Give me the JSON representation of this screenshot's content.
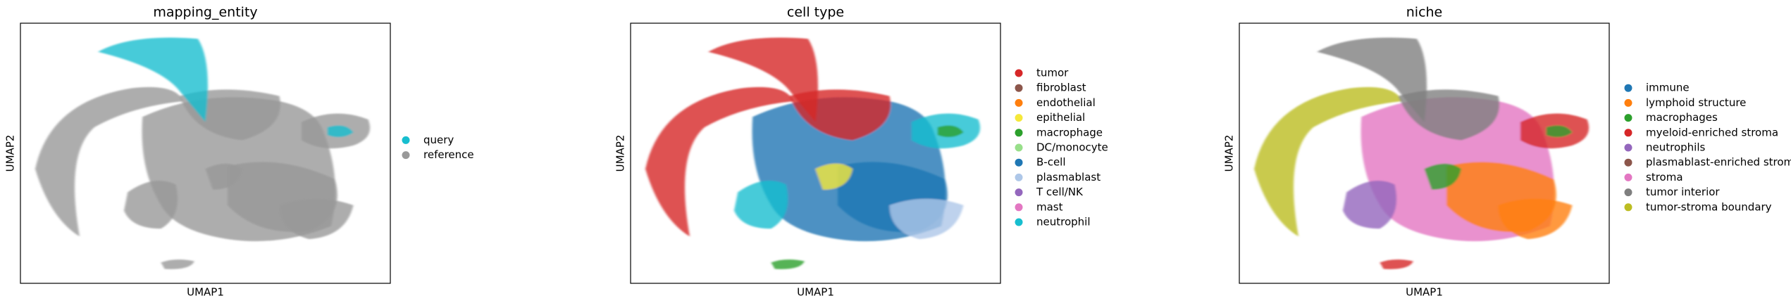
{
  "chart_data": [
    {
      "type": "scatter",
      "title": "mapping_entity",
      "xlabel": "UMAP1",
      "ylabel": "UMAP2",
      "series": [
        {
          "name": "query",
          "color": "#17becf"
        },
        {
          "name": "reference",
          "color": "#999999"
        }
      ]
    },
    {
      "type": "scatter",
      "title": "cell type",
      "xlabel": "UMAP1",
      "ylabel": "UMAP2",
      "series": [
        {
          "name": "tumor",
          "color": "#d62728"
        },
        {
          "name": "fibroblast",
          "color": "#8c564b"
        },
        {
          "name": "endothelial",
          "color": "#ff7f0e"
        },
        {
          "name": "epithelial",
          "color": "#f5e83a"
        },
        {
          "name": "macrophage",
          "color": "#2ca02c"
        },
        {
          "name": "DC/monocyte",
          "color": "#98df8a"
        },
        {
          "name": "B-cell",
          "color": "#1f77b4"
        },
        {
          "name": "plasmablast",
          "color": "#aec7e8"
        },
        {
          "name": "T cell/NK",
          "color": "#9467bd"
        },
        {
          "name": "mast",
          "color": "#e377c2"
        },
        {
          "name": "neutrophil",
          "color": "#17becf"
        }
      ]
    },
    {
      "type": "scatter",
      "title": "niche",
      "xlabel": "UMAP1",
      "ylabel": "UMAP2",
      "series": [
        {
          "name": "immune",
          "color": "#1f77b4"
        },
        {
          "name": "lymphoid structure",
          "color": "#ff7f0e"
        },
        {
          "name": "macrophages",
          "color": "#2ca02c"
        },
        {
          "name": "myeloid-enriched stroma",
          "color": "#d62728"
        },
        {
          "name": "neutrophils",
          "color": "#9467bd"
        },
        {
          "name": "plasmablast-enriched stroma",
          "color": "#8c564b"
        },
        {
          "name": "stroma",
          "color": "#e377c2"
        },
        {
          "name": "tumor interior",
          "color": "#7f7f7f"
        },
        {
          "name": "tumor-stroma boundary",
          "color": "#bcbd22"
        }
      ]
    }
  ]
}
